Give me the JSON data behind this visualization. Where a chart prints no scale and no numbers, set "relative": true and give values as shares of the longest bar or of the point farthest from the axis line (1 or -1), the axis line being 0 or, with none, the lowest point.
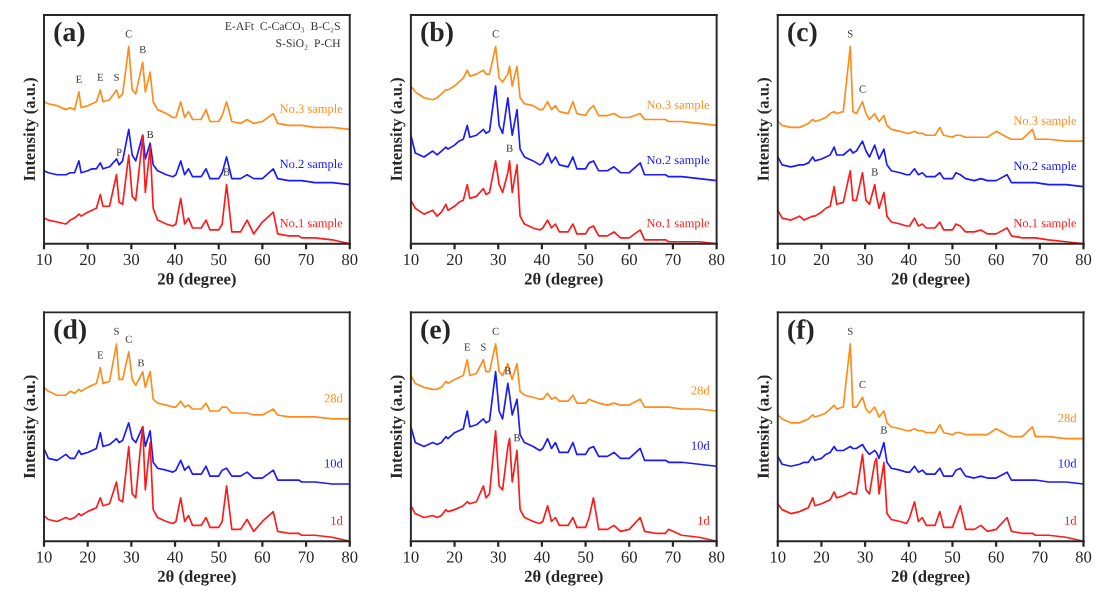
{
  "chart_data": [
    {
      "type": "line",
      "title": "(a)",
      "xlabel": "2θ (degree)",
      "ylabel": "Intensity (a.u.)",
      "relative": true,
      "tick_labels": "x",
      "xlim": [
        10,
        80
      ],
      "xticks": [
        10,
        20,
        30,
        40,
        50,
        60,
        70,
        80
      ],
      "x": [
        10,
        11,
        13,
        15,
        16,
        17,
        18,
        18.5,
        20,
        21,
        22,
        22.9,
        23.5,
        25,
        26.6,
        27.2,
        28,
        29.4,
        30.2,
        31,
        32.2,
        32.6,
        33.2,
        34.3,
        35,
        36,
        38,
        39.5,
        40.2,
        41.3,
        42.2,
        43.1,
        44,
        46,
        47.1,
        48,
        50,
        50.8,
        51.8,
        53,
        55,
        56.5,
        58,
        60,
        62.5,
        63.5,
        66,
        68.3,
        69,
        72,
        76,
        80
      ],
      "series": [
        {
          "name": "No.3 sample",
          "color": "#ff8c1a",
          "values": [
            0.72,
            0.71,
            0.7,
            0.68,
            0.69,
            0.68,
            0.77,
            0.69,
            0.7,
            0.71,
            0.72,
            0.78,
            0.72,
            0.73,
            0.78,
            0.74,
            0.76,
            1.0,
            0.78,
            0.76,
            0.88,
            0.92,
            0.77,
            0.87,
            0.72,
            0.68,
            0.66,
            0.64,
            0.64,
            0.72,
            0.64,
            0.67,
            0.63,
            0.63,
            0.68,
            0.62,
            0.62,
            0.65,
            0.72,
            0.62,
            0.61,
            0.63,
            0.61,
            0.62,
            0.66,
            0.61,
            0.6,
            0.6,
            0.6,
            0.59,
            0.59,
            0.58
          ]
        },
        {
          "name": "No.2 sample",
          "color": "#1a1aff",
          "values": [
            0.37,
            0.36,
            0.35,
            0.35,
            0.36,
            0.36,
            0.42,
            0.36,
            0.37,
            0.38,
            0.38,
            0.41,
            0.38,
            0.39,
            0.43,
            0.4,
            0.42,
            0.58,
            0.45,
            0.42,
            0.52,
            0.55,
            0.43,
            0.51,
            0.4,
            0.37,
            0.35,
            0.34,
            0.35,
            0.42,
            0.35,
            0.38,
            0.34,
            0.34,
            0.38,
            0.33,
            0.33,
            0.36,
            0.44,
            0.33,
            0.33,
            0.35,
            0.33,
            0.33,
            0.38,
            0.33,
            0.32,
            0.32,
            0.32,
            0.31,
            0.31,
            0.3
          ]
        },
        {
          "name": "No.1 sample",
          "color": "#ff1a1a",
          "values": [
            0.13,
            0.12,
            0.11,
            0.1,
            0.12,
            0.13,
            0.15,
            0.14,
            0.16,
            0.17,
            0.18,
            0.25,
            0.19,
            0.19,
            0.35,
            0.21,
            0.2,
            0.45,
            0.24,
            0.22,
            0.46,
            0.55,
            0.26,
            0.49,
            0.18,
            0.12,
            0.1,
            0.09,
            0.1,
            0.23,
            0.1,
            0.13,
            0.08,
            0.08,
            0.12,
            0.07,
            0.07,
            0.1,
            0.3,
            0.06,
            0.06,
            0.12,
            0.05,
            0.11,
            0.16,
            0.05,
            0.04,
            0.04,
            0.03,
            0.03,
            0.02,
            0.0
          ]
        }
      ],
      "annotations": [
        "E-AFt  C-CaCO₃  B-C₂S",
        "S-SiO₂  P-CH",
        {
          "text": "E",
          "x": 18,
          "y": 0.77
        },
        {
          "text": "E",
          "x": 22.9,
          "y": 0.78
        },
        {
          "text": "S",
          "x": 26.6,
          "y": 0.78
        },
        {
          "text": "C",
          "x": 29.4,
          "y": 1.0
        },
        {
          "text": "B",
          "x": 32.6,
          "y": 0.92
        },
        {
          "text": "P",
          "x": 27.2,
          "y": 0.4
        },
        {
          "text": "B",
          "x": 34.3,
          "y": 0.49
        },
        {
          "text": "B",
          "x": 51.8,
          "y": 0.3
        }
      ]
    },
    {
      "type": "line",
      "title": "(b)",
      "xlabel": "2θ (degree)",
      "ylabel": "Intensity (a.u.)",
      "relative": true,
      "tick_labels": "x",
      "xlim": [
        10,
        80
      ],
      "xticks": [
        10,
        20,
        30,
        40,
        50,
        60,
        70,
        80
      ],
      "x": [
        10,
        11,
        13,
        15,
        16,
        17,
        18,
        18.5,
        20,
        21,
        22,
        22.9,
        23.5,
        25,
        26.6,
        27.2,
        28,
        29.4,
        30.2,
        31,
        32.2,
        32.6,
        33.2,
        34.3,
        35,
        36,
        38,
        39.5,
        40.2,
        41.3,
        42.2,
        43.1,
        44,
        46,
        47.1,
        48,
        50,
        50.8,
        51.8,
        53,
        55,
        56.5,
        58,
        60,
        62.5,
        63.5,
        66,
        68.3,
        69,
        72,
        76,
        80
      ],
      "series": [
        {
          "name": "No.3 sample",
          "color": "#ff8c1a",
          "values": [
            0.8,
            0.77,
            0.74,
            0.73,
            0.74,
            0.76,
            0.78,
            0.78,
            0.8,
            0.82,
            0.84,
            0.88,
            0.85,
            0.86,
            0.88,
            0.86,
            0.86,
            1.0,
            0.84,
            0.82,
            0.86,
            0.9,
            0.8,
            0.9,
            0.74,
            0.71,
            0.7,
            0.68,
            0.68,
            0.72,
            0.68,
            0.7,
            0.67,
            0.66,
            0.72,
            0.66,
            0.65,
            0.68,
            0.7,
            0.65,
            0.65,
            0.66,
            0.64,
            0.64,
            0.66,
            0.63,
            0.63,
            0.63,
            0.62,
            0.62,
            0.61,
            0.6
          ]
        },
        {
          "name": "No.2 sample",
          "color": "#1a1aff",
          "values": [
            0.55,
            0.46,
            0.44,
            0.47,
            0.45,
            0.47,
            0.49,
            0.48,
            0.5,
            0.52,
            0.53,
            0.6,
            0.54,
            0.55,
            0.58,
            0.56,
            0.57,
            0.8,
            0.6,
            0.56,
            0.74,
            0.66,
            0.55,
            0.68,
            0.48,
            0.44,
            0.42,
            0.4,
            0.41,
            0.46,
            0.41,
            0.44,
            0.4,
            0.39,
            0.44,
            0.38,
            0.38,
            0.41,
            0.42,
            0.37,
            0.37,
            0.39,
            0.36,
            0.36,
            0.41,
            0.35,
            0.35,
            0.35,
            0.34,
            0.34,
            0.33,
            0.32
          ]
        },
        {
          "name": "No.1 sample",
          "color": "#ff1a1a",
          "values": [
            0.22,
            0.18,
            0.15,
            0.17,
            0.14,
            0.16,
            0.2,
            0.17,
            0.19,
            0.21,
            0.22,
            0.3,
            0.23,
            0.24,
            0.28,
            0.25,
            0.26,
            0.42,
            0.3,
            0.26,
            0.36,
            0.42,
            0.26,
            0.4,
            0.14,
            0.1,
            0.08,
            0.07,
            0.08,
            0.12,
            0.08,
            0.1,
            0.06,
            0.06,
            0.1,
            0.05,
            0.05,
            0.08,
            0.09,
            0.04,
            0.04,
            0.06,
            0.03,
            0.03,
            0.07,
            0.02,
            0.02,
            0.02,
            0.01,
            0.01,
            0.01,
            0.0
          ]
        }
      ],
      "annotations": [
        {
          "text": "C",
          "x": 29.4,
          "y": 1.0
        },
        {
          "text": "B",
          "x": 32.6,
          "y": 0.42
        }
      ]
    },
    {
      "type": "line",
      "title": "(c)",
      "xlabel": "2θ (degree)",
      "ylabel": "Intensity (a.u.)",
      "relative": true,
      "tick_labels": "x",
      "xlim": [
        10,
        80
      ],
      "xticks": [
        10,
        20,
        30,
        40,
        50,
        60,
        70,
        80
      ],
      "x": [
        10,
        11,
        13,
        15,
        16,
        17,
        18,
        18.5,
        20,
        21,
        22,
        22.9,
        23.5,
        25,
        26.6,
        27.2,
        28,
        29.4,
        30.2,
        31,
        32.2,
        32.6,
        33.2,
        34.3,
        35,
        36,
        38,
        39.5,
        40.2,
        41.3,
        42.2,
        43.1,
        44,
        46,
        47.1,
        48,
        50,
        50.8,
        51.8,
        53,
        55,
        56.5,
        58,
        60,
        62.5,
        63.5,
        66,
        68.3,
        69,
        72,
        76,
        80
      ],
      "series": [
        {
          "name": "No.3 sample",
          "color": "#ff8c1a",
          "values": [
            0.62,
            0.6,
            0.59,
            0.59,
            0.6,
            0.61,
            0.63,
            0.62,
            0.63,
            0.64,
            0.66,
            0.67,
            0.66,
            0.67,
            1.0,
            0.67,
            0.66,
            0.72,
            0.66,
            0.63,
            0.66,
            0.64,
            0.62,
            0.65,
            0.6,
            0.58,
            0.57,
            0.56,
            0.56,
            0.57,
            0.56,
            0.56,
            0.55,
            0.55,
            0.59,
            0.55,
            0.54,
            0.55,
            0.55,
            0.54,
            0.54,
            0.54,
            0.54,
            0.57,
            0.54,
            0.53,
            0.53,
            0.58,
            0.53,
            0.53,
            0.52,
            0.52
          ]
        },
        {
          "name": "No.2 sample",
          "color": "#1a1aff",
          "values": [
            0.44,
            0.4,
            0.39,
            0.4,
            0.4,
            0.41,
            0.44,
            0.42,
            0.43,
            0.44,
            0.45,
            0.49,
            0.45,
            0.45,
            0.48,
            0.46,
            0.47,
            0.52,
            0.47,
            0.44,
            0.5,
            0.47,
            0.43,
            0.48,
            0.4,
            0.37,
            0.36,
            0.35,
            0.35,
            0.38,
            0.35,
            0.36,
            0.34,
            0.34,
            0.36,
            0.33,
            0.33,
            0.36,
            0.35,
            0.33,
            0.32,
            0.33,
            0.32,
            0.32,
            0.35,
            0.31,
            0.31,
            0.31,
            0.31,
            0.3,
            0.3,
            0.29
          ]
        },
        {
          "name": "No.1 sample",
          "color": "#ff1a1a",
          "values": [
            0.17,
            0.13,
            0.12,
            0.14,
            0.12,
            0.13,
            0.14,
            0.14,
            0.16,
            0.18,
            0.19,
            0.29,
            0.2,
            0.21,
            0.37,
            0.22,
            0.22,
            0.36,
            0.22,
            0.2,
            0.3,
            0.24,
            0.18,
            0.26,
            0.14,
            0.11,
            0.1,
            0.09,
            0.09,
            0.13,
            0.09,
            0.1,
            0.08,
            0.08,
            0.11,
            0.07,
            0.07,
            0.1,
            0.09,
            0.06,
            0.06,
            0.07,
            0.05,
            0.05,
            0.08,
            0.04,
            0.03,
            0.03,
            0.03,
            0.02,
            0.01,
            0.0
          ]
        }
      ],
      "annotations": [
        {
          "text": "S",
          "x": 26.6,
          "y": 1.0
        },
        {
          "text": "C",
          "x": 29.4,
          "y": 0.72
        },
        {
          "text": "B",
          "x": 32.2,
          "y": 0.3
        }
      ]
    },
    {
      "type": "line",
      "title": "(d)",
      "xlabel": "2θ (degree)",
      "ylabel": "Intensity (a.u.)",
      "relative": true,
      "tick_labels": "x",
      "xlim": [
        10,
        80
      ],
      "xticks": [
        10,
        20,
        30,
        40,
        50,
        60,
        70,
        80
      ],
      "x": [
        10,
        11,
        13,
        15,
        16,
        17,
        18,
        18.5,
        20,
        21,
        22,
        22.9,
        23.5,
        25,
        26.6,
        27.2,
        28,
        29.4,
        30.2,
        31,
        32.2,
        32.6,
        33.2,
        34.3,
        35,
        36,
        38,
        39.5,
        40.2,
        41.3,
        42.2,
        43.1,
        44,
        46,
        47.1,
        48,
        50,
        50.8,
        51.8,
        53,
        55,
        56.5,
        58,
        60,
        62.5,
        63.5,
        66,
        68.3,
        69,
        72,
        76,
        80
      ],
      "series": [
        {
          "name": "28d",
          "color": "#ff8c1a",
          "values": [
            0.78,
            0.76,
            0.74,
            0.74,
            0.76,
            0.75,
            0.77,
            0.76,
            0.78,
            0.79,
            0.8,
            0.88,
            0.8,
            0.81,
            1.0,
            0.82,
            0.82,
            0.96,
            0.82,
            0.79,
            0.84,
            0.86,
            0.78,
            0.86,
            0.72,
            0.7,
            0.69,
            0.68,
            0.68,
            0.71,
            0.68,
            0.69,
            0.67,
            0.67,
            0.7,
            0.66,
            0.66,
            0.68,
            0.68,
            0.65,
            0.65,
            0.65,
            0.64,
            0.64,
            0.67,
            0.64,
            0.63,
            0.63,
            0.63,
            0.63,
            0.62,
            0.62
          ]
        },
        {
          "name": "10d",
          "color": "#1a1aff",
          "values": [
            0.47,
            0.42,
            0.41,
            0.44,
            0.42,
            0.42,
            0.46,
            0.44,
            0.45,
            0.46,
            0.47,
            0.55,
            0.48,
            0.49,
            0.52,
            0.5,
            0.51,
            0.6,
            0.52,
            0.5,
            0.56,
            0.58,
            0.48,
            0.56,
            0.4,
            0.37,
            0.36,
            0.35,
            0.36,
            0.41,
            0.36,
            0.38,
            0.34,
            0.34,
            0.38,
            0.33,
            0.33,
            0.36,
            0.37,
            0.33,
            0.33,
            0.35,
            0.32,
            0.32,
            0.36,
            0.31,
            0.31,
            0.31,
            0.3,
            0.3,
            0.29,
            0.29
          ]
        },
        {
          "name": "1d",
          "color": "#ff1a1a",
          "values": [
            0.13,
            0.11,
            0.1,
            0.12,
            0.11,
            0.12,
            0.14,
            0.13,
            0.15,
            0.16,
            0.17,
            0.22,
            0.18,
            0.19,
            0.3,
            0.21,
            0.2,
            0.48,
            0.24,
            0.22,
            0.5,
            0.58,
            0.26,
            0.5,
            0.16,
            0.12,
            0.1,
            0.09,
            0.1,
            0.22,
            0.1,
            0.13,
            0.08,
            0.08,
            0.12,
            0.07,
            0.07,
            0.1,
            0.28,
            0.06,
            0.06,
            0.11,
            0.05,
            0.1,
            0.15,
            0.05,
            0.04,
            0.04,
            0.03,
            0.03,
            0.02,
            0.0
          ]
        }
      ],
      "annotations": [
        {
          "text": "E",
          "x": 22.9,
          "y": 0.88
        },
        {
          "text": "S",
          "x": 26.6,
          "y": 1.0
        },
        {
          "text": "C",
          "x": 29.4,
          "y": 0.96
        },
        {
          "text": "B",
          "x": 32.2,
          "y": 0.84
        }
      ]
    },
    {
      "type": "line",
      "title": "(e)",
      "xlabel": "2θ (degree)",
      "ylabel": "Intensity (a.u.)",
      "relative": true,
      "tick_labels": "x",
      "xlim": [
        10,
        80
      ],
      "xticks": [
        10,
        20,
        30,
        40,
        50,
        60,
        70,
        80
      ],
      "x": [
        10,
        11,
        13,
        15,
        16,
        17,
        18,
        18.5,
        20,
        21,
        22,
        22.9,
        23.5,
        25,
        26.6,
        27.2,
        28,
        29.4,
        30.2,
        31,
        32.2,
        32.6,
        33.2,
        34.3,
        35,
        36,
        38,
        39.5,
        40.2,
        41.3,
        42.2,
        43.1,
        44,
        46,
        47.1,
        48,
        50,
        50.8,
        51.8,
        53,
        55,
        56.5,
        58,
        60,
        62.5,
        63.5,
        66,
        68.3,
        69,
        72,
        76,
        80
      ],
      "series": [
        {
          "name": "28d",
          "color": "#ff8c1a",
          "values": [
            0.84,
            0.8,
            0.78,
            0.77,
            0.77,
            0.78,
            0.81,
            0.8,
            0.82,
            0.83,
            0.84,
            0.92,
            0.84,
            0.85,
            0.92,
            0.86,
            0.86,
            1.0,
            0.86,
            0.84,
            0.9,
            0.86,
            0.82,
            0.9,
            0.76,
            0.74,
            0.73,
            0.72,
            0.72,
            0.75,
            0.72,
            0.73,
            0.71,
            0.71,
            0.74,
            0.7,
            0.7,
            0.72,
            0.71,
            0.7,
            0.69,
            0.7,
            0.69,
            0.69,
            0.72,
            0.68,
            0.68,
            0.68,
            0.68,
            0.67,
            0.67,
            0.66
          ]
        },
        {
          "name": "10d",
          "color": "#1a1aff",
          "values": [
            0.58,
            0.5,
            0.48,
            0.5,
            0.49,
            0.5,
            0.53,
            0.52,
            0.55,
            0.56,
            0.57,
            0.66,
            0.58,
            0.59,
            0.62,
            0.6,
            0.61,
            0.86,
            0.66,
            0.62,
            0.8,
            0.74,
            0.64,
            0.72,
            0.54,
            0.5,
            0.48,
            0.46,
            0.47,
            0.52,
            0.47,
            0.5,
            0.45,
            0.45,
            0.5,
            0.44,
            0.44,
            0.47,
            0.48,
            0.43,
            0.43,
            0.45,
            0.42,
            0.42,
            0.47,
            0.41,
            0.41,
            0.41,
            0.4,
            0.4,
            0.39,
            0.38
          ]
        },
        {
          "name": "1d",
          "color": "#ff1a1a",
          "values": [
            0.18,
            0.14,
            0.12,
            0.13,
            0.12,
            0.13,
            0.16,
            0.15,
            0.16,
            0.17,
            0.18,
            0.2,
            0.19,
            0.2,
            0.28,
            0.22,
            0.24,
            0.56,
            0.28,
            0.26,
            0.48,
            0.52,
            0.3,
            0.46,
            0.16,
            0.12,
            0.1,
            0.09,
            0.1,
            0.18,
            0.1,
            0.12,
            0.08,
            0.08,
            0.12,
            0.07,
            0.07,
            0.12,
            0.22,
            0.06,
            0.06,
            0.08,
            0.05,
            0.06,
            0.12,
            0.05,
            0.04,
            0.04,
            0.06,
            0.03,
            0.02,
            0.0
          ]
        }
      ],
      "annotations": [
        {
          "text": "E",
          "x": 22.9,
          "y": 0.92
        },
        {
          "text": "S",
          "x": 26.6,
          "y": 0.92
        },
        {
          "text": "C",
          "x": 29.4,
          "y": 1.0
        },
        {
          "text": "B",
          "x": 32.2,
          "y": 0.8
        },
        {
          "text": "B",
          "x": 34.3,
          "y": 0.46
        }
      ]
    },
    {
      "type": "line",
      "title": "(f)",
      "xlabel": "2θ (degree)",
      "ylabel": "Intensity (a.u.)",
      "relative": true,
      "tick_labels": "x",
      "xlim": [
        10,
        80
      ],
      "xticks": [
        10,
        20,
        30,
        40,
        50,
        60,
        70,
        80
      ],
      "x": [
        10,
        11,
        13,
        15,
        16,
        17,
        18,
        18.5,
        20,
        21,
        22,
        22.9,
        23.5,
        25,
        26.6,
        27.2,
        28,
        29.4,
        30.2,
        31,
        32.2,
        32.6,
        33.2,
        34.3,
        35,
        36,
        38,
        39.5,
        40.2,
        41.3,
        42.2,
        43.1,
        44,
        46,
        47.1,
        48,
        50,
        50.8,
        51.8,
        53,
        55,
        56.5,
        58,
        60,
        62.5,
        63.5,
        66,
        68.3,
        69,
        72,
        76,
        80
      ],
      "series": [
        {
          "name": "28d",
          "color": "#ff8c1a",
          "values": [
            0.64,
            0.62,
            0.6,
            0.6,
            0.61,
            0.62,
            0.64,
            0.63,
            0.64,
            0.65,
            0.67,
            0.69,
            0.67,
            0.68,
            1.0,
            0.68,
            0.68,
            0.73,
            0.67,
            0.65,
            0.68,
            0.66,
            0.63,
            0.66,
            0.6,
            0.58,
            0.57,
            0.56,
            0.56,
            0.57,
            0.56,
            0.56,
            0.55,
            0.55,
            0.59,
            0.55,
            0.54,
            0.55,
            0.55,
            0.54,
            0.54,
            0.54,
            0.54,
            0.57,
            0.54,
            0.53,
            0.53,
            0.58,
            0.53,
            0.53,
            0.52,
            0.52
          ]
        },
        {
          "name": "10d",
          "color": "#1a1aff",
          "values": [
            0.43,
            0.39,
            0.38,
            0.39,
            0.4,
            0.4,
            0.43,
            0.41,
            0.42,
            0.44,
            0.45,
            0.48,
            0.46,
            0.46,
            0.48,
            0.47,
            0.47,
            0.49,
            0.46,
            0.44,
            0.46,
            0.45,
            0.42,
            0.5,
            0.4,
            0.37,
            0.36,
            0.35,
            0.35,
            0.38,
            0.35,
            0.36,
            0.34,
            0.34,
            0.37,
            0.33,
            0.33,
            0.36,
            0.37,
            0.33,
            0.32,
            0.33,
            0.32,
            0.32,
            0.35,
            0.31,
            0.31,
            0.31,
            0.31,
            0.3,
            0.3,
            0.29
          ]
        },
        {
          "name": "1d",
          "color": "#ff1a1a",
          "values": [
            0.19,
            0.16,
            0.14,
            0.15,
            0.16,
            0.17,
            0.22,
            0.18,
            0.19,
            0.2,
            0.21,
            0.25,
            0.22,
            0.23,
            0.25,
            0.24,
            0.24,
            0.44,
            0.26,
            0.24,
            0.4,
            0.42,
            0.24,
            0.4,
            0.14,
            0.11,
            0.1,
            0.09,
            0.12,
            0.2,
            0.1,
            0.12,
            0.08,
            0.08,
            0.15,
            0.07,
            0.07,
            0.12,
            0.18,
            0.06,
            0.06,
            0.08,
            0.05,
            0.06,
            0.12,
            0.05,
            0.04,
            0.04,
            0.03,
            0.03,
            0.02,
            0.0
          ]
        }
      ],
      "annotations": [
        {
          "text": "S",
          "x": 26.6,
          "y": 1.0
        },
        {
          "text": "C",
          "x": 29.4,
          "y": 0.73
        },
        {
          "text": "B",
          "x": 34.3,
          "y": 0.5
        }
      ]
    }
  ]
}
